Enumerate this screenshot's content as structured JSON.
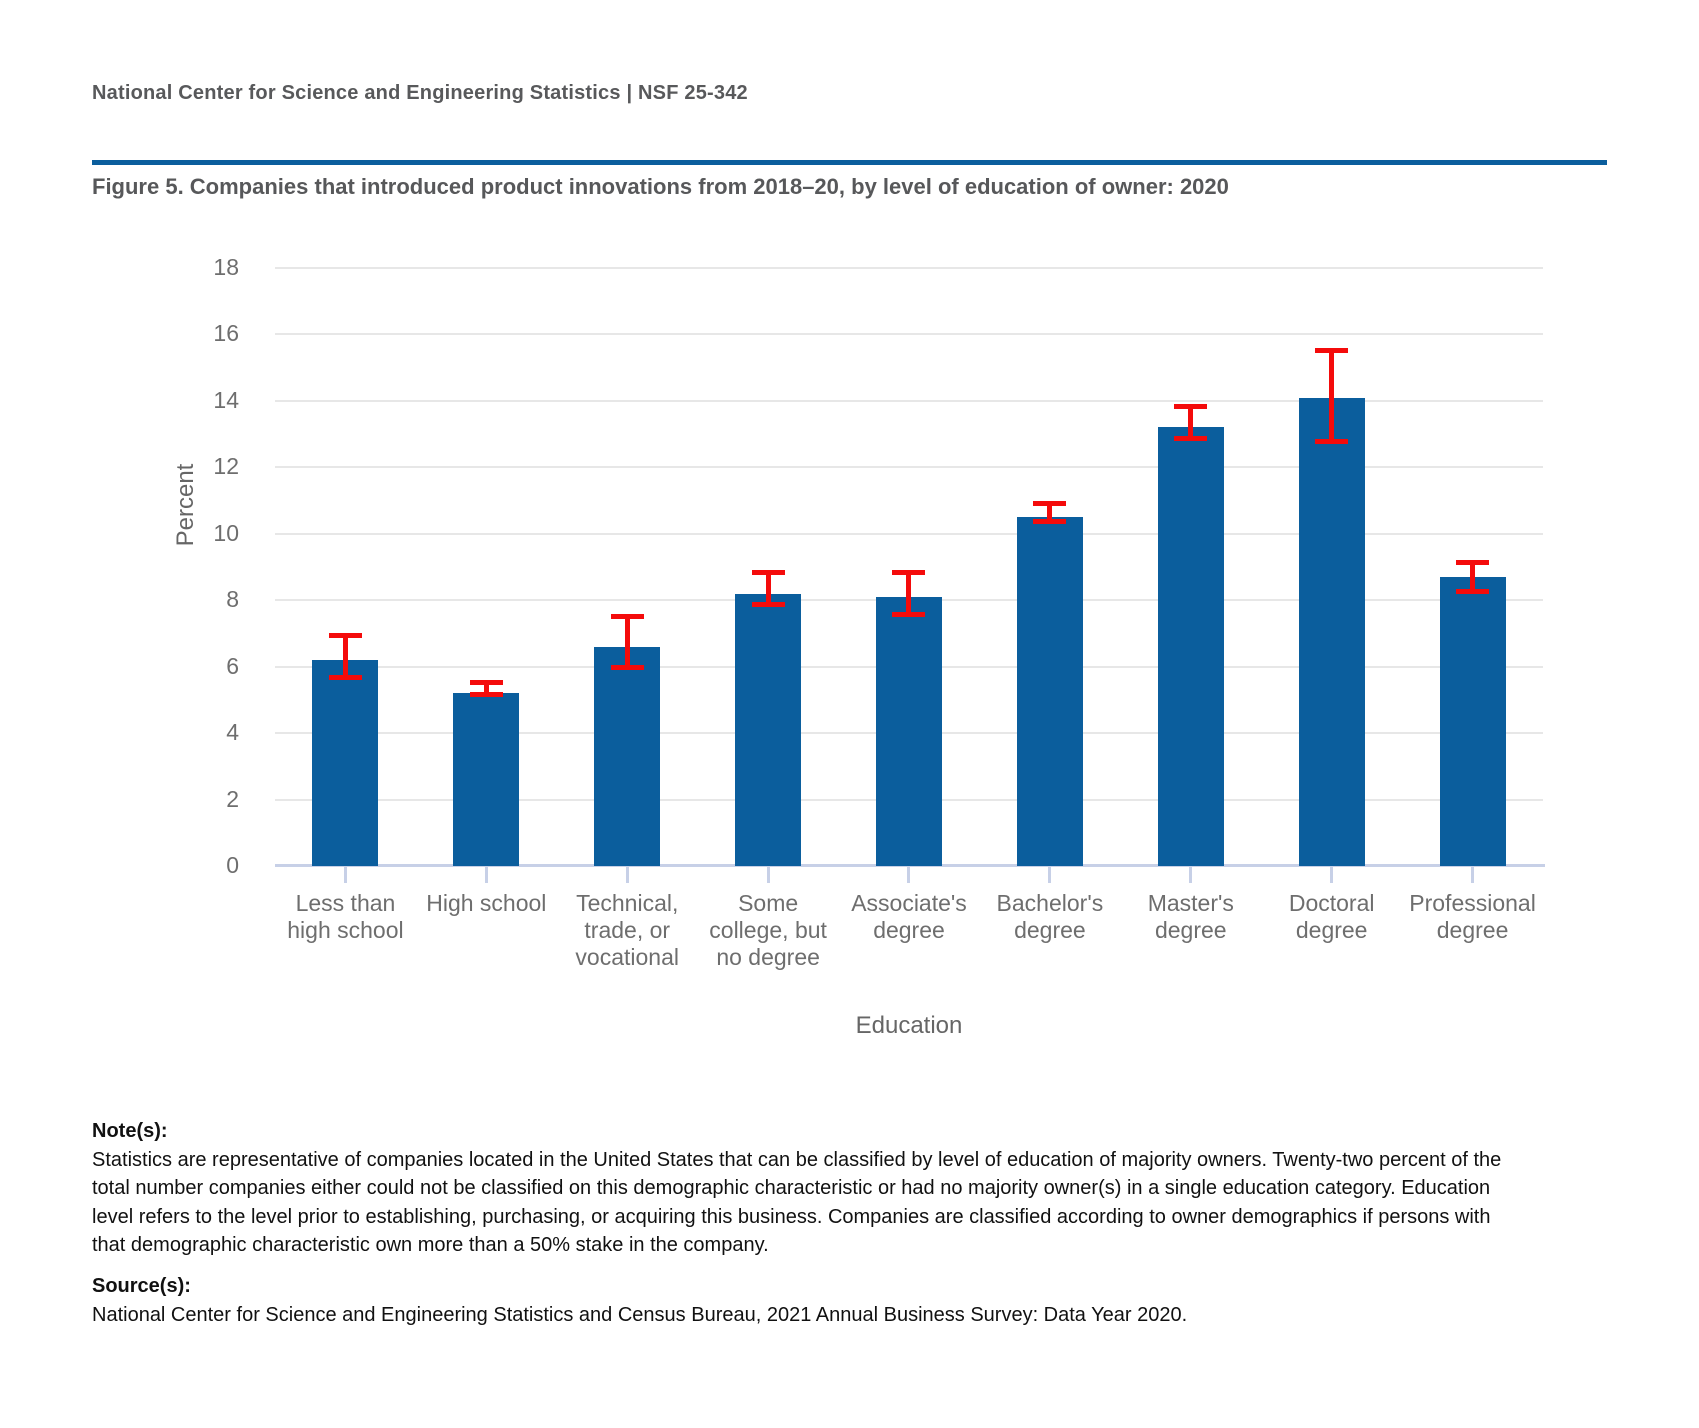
{
  "header": {
    "text": "National Center for Science and Engineering Statistics  |  NSF 25-342"
  },
  "figure": {
    "title": "Figure 5. Companies that introduced product innovations from 2018–20, by level of education of owner: 2020"
  },
  "chart_data": {
    "type": "bar",
    "title": "Figure 5. Companies that introduced product innovations from 2018–20, by level of education of owner: 2020",
    "xlabel": "Education",
    "ylabel": "Percent",
    "ylim": [
      0,
      18
    ],
    "yticks": [
      0,
      2,
      4,
      6,
      8,
      10,
      12,
      14,
      16,
      18
    ],
    "grid": true,
    "legend": "none",
    "bar_color": "#0B5E9D",
    "error_bar_color": "#F40B0B",
    "categories": [
      "Less than high school",
      "High school",
      "Technical, trade, or vocational",
      "Some college, but no degree",
      "Associate's degree",
      "Bachelor's degree",
      "Master's degree",
      "Doctoral degree",
      "Professional degree"
    ],
    "category_lines": [
      [
        "Less than",
        "high school"
      ],
      [
        "High school"
      ],
      [
        "Technical,",
        "trade, or",
        "vocational"
      ],
      [
        "Some",
        "college, but",
        "no degree"
      ],
      [
        "Associate's",
        "degree"
      ],
      [
        "Bachelor's",
        "degree"
      ],
      [
        "Master's",
        "degree"
      ],
      [
        "Doctoral",
        "degree"
      ],
      [
        "Professional",
        "degree"
      ]
    ],
    "values": [
      6.2,
      5.2,
      6.6,
      8.2,
      8.1,
      10.5,
      13.2,
      14.1,
      8.7
    ],
    "error_low": [
      5.6,
      5.1,
      5.9,
      7.8,
      7.5,
      10.3,
      12.8,
      12.7,
      8.2
    ],
    "error_high": [
      7.0,
      5.6,
      7.6,
      8.9,
      8.9,
      11.0,
      13.9,
      15.6,
      9.2
    ]
  },
  "notes": {
    "heading": "Note(s):",
    "lines": [
      "Statistics are representative of companies located in the United States that can be classified by level of education of majority owners. Twenty-two percent of the",
      "total number companies either could not be classified on this demographic characteristic or had no majority owner(s) in a single education category. Education",
      "level refers to the level prior to establishing, purchasing, or acquiring this business. Companies are classified according to owner demographics if persons with",
      "that demographic characteristic own more than a 50% stake in the company."
    ]
  },
  "source": {
    "heading": "Source(s):",
    "text": "National Center for Science and Engineering Statistics and Census Bureau, 2021 Annual Business Survey: Data Year 2020."
  }
}
